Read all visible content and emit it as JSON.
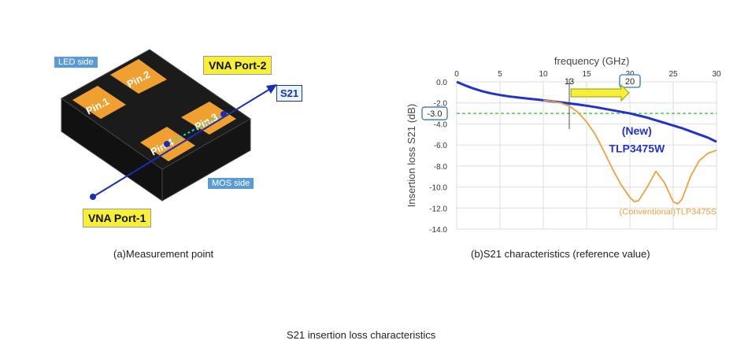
{
  "figure": {
    "caption": "S21 insertion loss characteristics"
  },
  "left_panel": {
    "caption": "(a)Measurement point",
    "led_side_label": "LED side",
    "mos_side_label": "MOS side",
    "vna_port2_label": "VNA Port-2",
    "vna_port1_label": "VNA Port-1",
    "s21_label": "S21",
    "pins": [
      "Pin.1",
      "Pin.2",
      "Pin.3",
      "Pin.4"
    ],
    "colors": {
      "package": "#1b1b1b",
      "pin": "#f0a030",
      "arrow": "#1a2fb0",
      "label_bg": "#f7ef3a",
      "side_label_bg": "#5b9bd5"
    }
  },
  "right_panel": {
    "caption": "(b)S21 characteristics (reference value)"
  },
  "chart_data": {
    "type": "line",
    "xlabel": "frequency (GHz)",
    "ylabel": "Insertion loss S21 (dB)",
    "xlim": [
      0,
      30
    ],
    "ylim": [
      -14,
      0
    ],
    "xticks": [
      0,
      5,
      10,
      15,
      20,
      25,
      30
    ],
    "yticks": [
      0.0,
      -2.0,
      -4.0,
      -6.0,
      -8.0,
      -10.0,
      -12.0,
      -14.0
    ],
    "xtick_labels": [
      "0",
      "5",
      "10",
      "15",
      "20",
      "25",
      "30"
    ],
    "ytick_labels": [
      "0.0",
      "-2.0",
      "-4.0",
      "-6.0",
      "-8.0",
      "-10.0",
      "-12.0",
      "-14.0"
    ],
    "grid": true,
    "reference_line": {
      "y": -3.0,
      "label": "-3.0",
      "color": "#33cc33"
    },
    "markers": [
      {
        "x": 13,
        "label": "13"
      },
      {
        "x": 20,
        "label": "20"
      }
    ],
    "series": [
      {
        "name": "(New)",
        "name2": "TLP3475W",
        "color": "#2233cc",
        "x": [
          0,
          1,
          2,
          3,
          4,
          5,
          6,
          7,
          8,
          9,
          10,
          11,
          12,
          13,
          14,
          15,
          16,
          17,
          18,
          19,
          20,
          21,
          22,
          23,
          24,
          25,
          26,
          27,
          28,
          29,
          30
        ],
        "y": [
          0.0,
          -0.35,
          -0.65,
          -0.9,
          -1.1,
          -1.25,
          -1.38,
          -1.48,
          -1.57,
          -1.66,
          -1.75,
          -1.85,
          -1.95,
          -2.05,
          -2.15,
          -2.27,
          -2.4,
          -2.55,
          -2.7,
          -2.85,
          -3.0,
          -3.2,
          -3.4,
          -3.65,
          -3.9,
          -4.15,
          -4.4,
          -4.7,
          -5.0,
          -5.3,
          -5.7
        ]
      },
      {
        "name": "(Conventional)TLP3475S",
        "color": "#f0a040",
        "x": [
          10,
          11,
          12,
          13,
          14,
          15,
          16,
          17,
          18,
          19,
          20,
          20.5,
          21,
          22,
          23,
          24,
          25,
          25.5,
          26,
          27,
          28,
          29,
          30
        ],
        "y": [
          -1.75,
          -1.85,
          -2.0,
          -2.3,
          -2.9,
          -3.8,
          -5.0,
          -6.6,
          -8.3,
          -9.8,
          -11.0,
          -11.4,
          -11.3,
          -10.0,
          -8.5,
          -9.6,
          -11.4,
          -11.6,
          -11.2,
          -9.0,
          -7.5,
          -6.8,
          -6.5
        ]
      }
    ]
  }
}
